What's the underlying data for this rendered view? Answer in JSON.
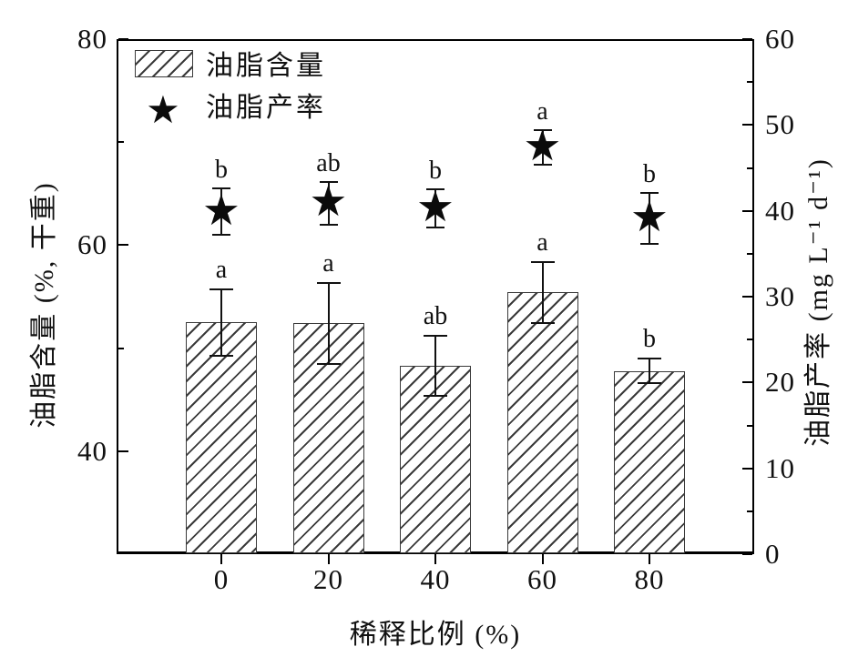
{
  "icons": {
    "star": "★"
  },
  "colors": {
    "ink": "#111111",
    "frame": "#000000",
    "hatch_line": "#3a3a3a",
    "bar_fill": "#ffffff",
    "background": "#ffffff"
  },
  "legend": {
    "position": "top-left-inside",
    "items": [
      {
        "label": "油脂含量",
        "marker": "hatched-bar"
      },
      {
        "label": "油脂产率",
        "marker": "star"
      }
    ]
  },
  "chart_data": {
    "type": "bar",
    "subtype": "dual-axis: hatched bars (left axis) + star scatter (right axis), both with error bars and significance letters",
    "categories": [
      "0",
      "20",
      "40",
      "60",
      "80"
    ],
    "xlabel": "稀释比例 (%)",
    "left_axis": {
      "label": "油脂含量 (%, 干重)",
      "min": 30,
      "max": 80,
      "major_ticks": [
        80,
        60,
        40
      ],
      "minor_ticks": [
        70,
        50
      ]
    },
    "right_axis": {
      "label": "油脂产率 (mg L⁻¹ d⁻¹)",
      "min": 0,
      "max": 60,
      "major_ticks": [
        60,
        50,
        40,
        30,
        20,
        10,
        0
      ],
      "minor_ticks": [
        55,
        45,
        35,
        25,
        15,
        5
      ]
    },
    "series": [
      {
        "name": "油脂含量",
        "type": "bar",
        "axis": "left",
        "values": [
          52.5,
          52.4,
          48.3,
          55.4,
          47.8
        ],
        "errors": [
          3.2,
          3.9,
          2.9,
          3.0,
          1.2
        ],
        "sig_letters": [
          "a",
          "a",
          "ab",
          "a",
          "b"
        ]
      },
      {
        "name": "油脂产率",
        "type": "scatter",
        "marker": "star",
        "axis": "right",
        "values": [
          39.9,
          40.9,
          40.3,
          47.4,
          39.1
        ],
        "errors": [
          2.7,
          2.5,
          2.2,
          2.0,
          3.0
        ],
        "sig_letters": [
          "b",
          "ab",
          "b",
          "a",
          "b"
        ]
      }
    ],
    "grid": false,
    "legend_position": "top-left-inside"
  }
}
